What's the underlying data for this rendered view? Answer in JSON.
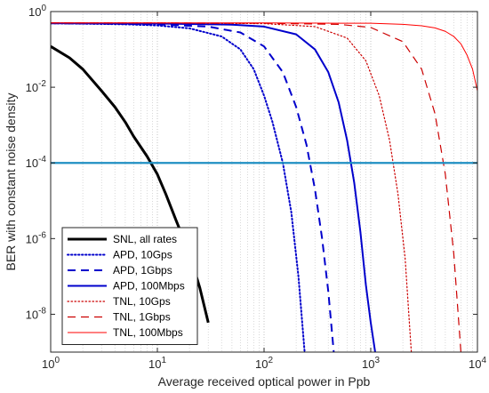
{
  "chart_data": {
    "type": "line",
    "xlabel": "Average received optical power in Ppb",
    "ylabel": "BER with constant noise density",
    "xscale": "log",
    "yscale": "log",
    "xlim": [
      1,
      10000
    ],
    "ylim": [
      1e-09,
      1
    ],
    "grid": "on (x major + minor dotted)",
    "legend_location": "bottom-left",
    "x_ticks": [
      {
        "base": "10",
        "exp": "0"
      },
      {
        "base": "10",
        "exp": "1"
      },
      {
        "base": "10",
        "exp": "2"
      },
      {
        "base": "10",
        "exp": "3"
      },
      {
        "base": "10",
        "exp": "4"
      }
    ],
    "y_ticks": [
      {
        "base": "10",
        "exp": "0"
      },
      {
        "base": "10",
        "exp": "-2"
      },
      {
        "base": "10",
        "exp": "-4"
      },
      {
        "base": "10",
        "exp": "-6"
      },
      {
        "base": "10",
        "exp": "-8"
      }
    ],
    "series": [
      {
        "name": "SNL, all rates",
        "color": "#000000",
        "style": "solid",
        "width": 3,
        "x": [
          1,
          1.5,
          2,
          3,
          4,
          5,
          6,
          8,
          10,
          12,
          15,
          20,
          25,
          30
        ],
        "y": [
          0.12,
          0.06,
          0.03,
          0.008,
          0.003,
          0.0012,
          0.0005,
          0.00015,
          5e-05,
          1.5e-05,
          3e-06,
          4e-07,
          5e-08,
          6e-09
        ]
      },
      {
        "name": "APD, 10Gps",
        "color": "#0000cc",
        "style": "dotted",
        "width": 2,
        "x": [
          1,
          3,
          5,
          10,
          20,
          40,
          60,
          80,
          100,
          120,
          150,
          180,
          210,
          240
        ],
        "y": [
          0.49,
          0.47,
          0.46,
          0.43,
          0.36,
          0.22,
          0.1,
          0.03,
          0.006,
          0.0012,
          0.0001,
          5e-06,
          1e-07,
          1e-09
        ]
      },
      {
        "name": "APD, 1Gbps",
        "color": "#0000cc",
        "style": "dashed",
        "width": 2,
        "x": [
          1,
          3,
          10,
          30,
          60,
          100,
          150,
          200,
          250,
          300,
          350,
          400,
          450
        ],
        "y": [
          0.49,
          0.48,
          0.46,
          0.4,
          0.28,
          0.12,
          0.025,
          0.003,
          0.0003,
          2e-05,
          1e-06,
          4e-08,
          1e-09
        ]
      },
      {
        "name": "APD, 100Mbps",
        "color": "#0000cc",
        "style": "solid",
        "width": 2,
        "x": [
          1,
          10,
          50,
          100,
          200,
          300,
          400,
          500,
          600,
          700,
          800,
          900,
          1000,
          1100
        ],
        "y": [
          0.49,
          0.48,
          0.45,
          0.4,
          0.25,
          0.1,
          0.025,
          0.004,
          0.0004,
          3e-05,
          1.5e-06,
          6e-08,
          6e-09,
          1e-09
        ]
      },
      {
        "name": "TNL, 10Gps",
        "color": "#cc0000",
        "style": "dotted",
        "width": 1.2,
        "x": [
          1,
          10,
          100,
          300,
          600,
          900,
          1200,
          1500,
          1800,
          2100,
          2400
        ],
        "y": [
          0.5,
          0.5,
          0.48,
          0.4,
          0.2,
          0.05,
          0.006,
          0.0004,
          1.5e-05,
          3e-07,
          1e-09
        ]
      },
      {
        "name": "TNL, 1Gbps",
        "color": "#cc0000",
        "style": "dashed",
        "width": 1.2,
        "x": [
          1,
          10,
          100,
          500,
          1000,
          2000,
          3000,
          4000,
          5000,
          6000,
          7000
        ],
        "y": [
          0.5,
          0.5,
          0.49,
          0.46,
          0.38,
          0.16,
          0.03,
          0.002,
          5e-05,
          4e-07,
          1e-09
        ]
      },
      {
        "name": "TNL, 100Mbps",
        "color": "#ff0000",
        "style": "solid",
        "width": 1,
        "x": [
          1,
          10,
          100,
          1000,
          2000,
          3000,
          4000,
          5000,
          6000,
          7000,
          8000,
          9000,
          10000
        ],
        "y": [
          0.5,
          0.5,
          0.5,
          0.49,
          0.46,
          0.42,
          0.37,
          0.3,
          0.22,
          0.14,
          0.07,
          0.03,
          0.008
        ]
      },
      {
        "name": "",
        "color": "#1f8fc2",
        "style": "solid",
        "width": 2.2,
        "x": [
          1,
          10000
        ],
        "y": [
          0.0001,
          0.0001
        ]
      }
    ]
  }
}
